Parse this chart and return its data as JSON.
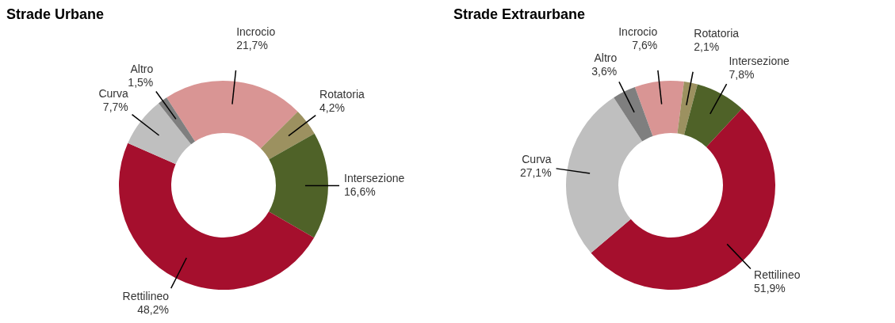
{
  "chart_data": [
    {
      "type": "donut",
      "title": "Strade Urbane",
      "categories": [
        "Incrocio",
        "Rotatoria",
        "Intersezione",
        "Rettilineo",
        "Curva",
        "Altro"
      ],
      "values": [
        21.7,
        4.2,
        16.6,
        48.2,
        7.7,
        1.5
      ],
      "value_labels": [
        "21,7%",
        "4,2%",
        "16,6%",
        "48,2%",
        "7,7%",
        "1,5%"
      ],
      "colors": [
        "#d99594",
        "#9c9160",
        "#4f6228",
        "#a50f2d",
        "#bfbfbf",
        "#7f7f7f"
      ],
      "legend": false
    },
    {
      "type": "donut",
      "title": "Strade Extraurbane",
      "categories": [
        "Incrocio",
        "Rotatoria",
        "Intersezione",
        "Rettilineo",
        "Curva",
        "Altro"
      ],
      "values": [
        7.6,
        2.1,
        7.8,
        51.9,
        27.1,
        3.6
      ],
      "value_labels": [
        "7,6%",
        "2,1%",
        "7,8%",
        "51,9%",
        "27,1%",
        "3,6%"
      ],
      "colors": [
        "#d99594",
        "#9c9160",
        "#4f6228",
        "#a50f2d",
        "#bfbfbf",
        "#7f7f7f"
      ],
      "legend": false
    }
  ]
}
